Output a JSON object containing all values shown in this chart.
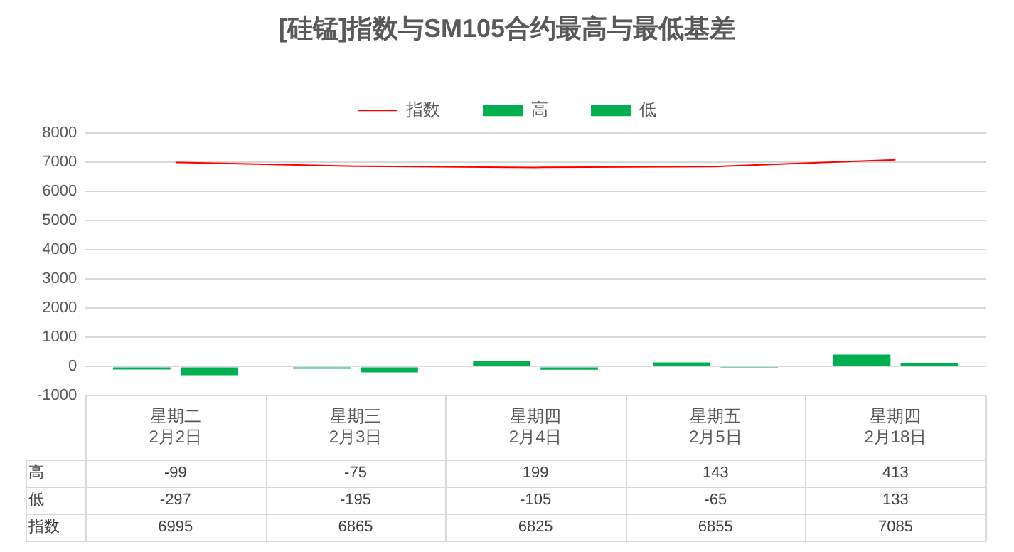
{
  "chart_data": {
    "type": "bar",
    "title": "[硅锰]指数与SM105合约最高与最低基差",
    "categories": [
      "星期二\n2月2日",
      "星期三\n2月3日",
      "星期四\n2月4日",
      "星期五\n2月5日",
      "星期四\n2月18日"
    ],
    "series": [
      {
        "name": "高",
        "color": "#00b050",
        "values": [
          -99,
          -75,
          199,
          143,
          413
        ]
      },
      {
        "name": "低",
        "color": "#00b050",
        "values": [
          -297,
          -195,
          -105,
          -65,
          133
        ]
      },
      {
        "name": "指数",
        "type": "line",
        "color": "#ff0000",
        "values": [
          6995,
          6865,
          6825,
          6855,
          7085
        ]
      }
    ],
    "ylim": [
      -1000,
      8000
    ],
    "yticks": [
      -1000,
      0,
      1000,
      2000,
      3000,
      4000,
      5000,
      6000,
      7000,
      8000
    ],
    "grid": "y",
    "legend": "top",
    "marker": "none",
    "data_labels": true
  }
}
